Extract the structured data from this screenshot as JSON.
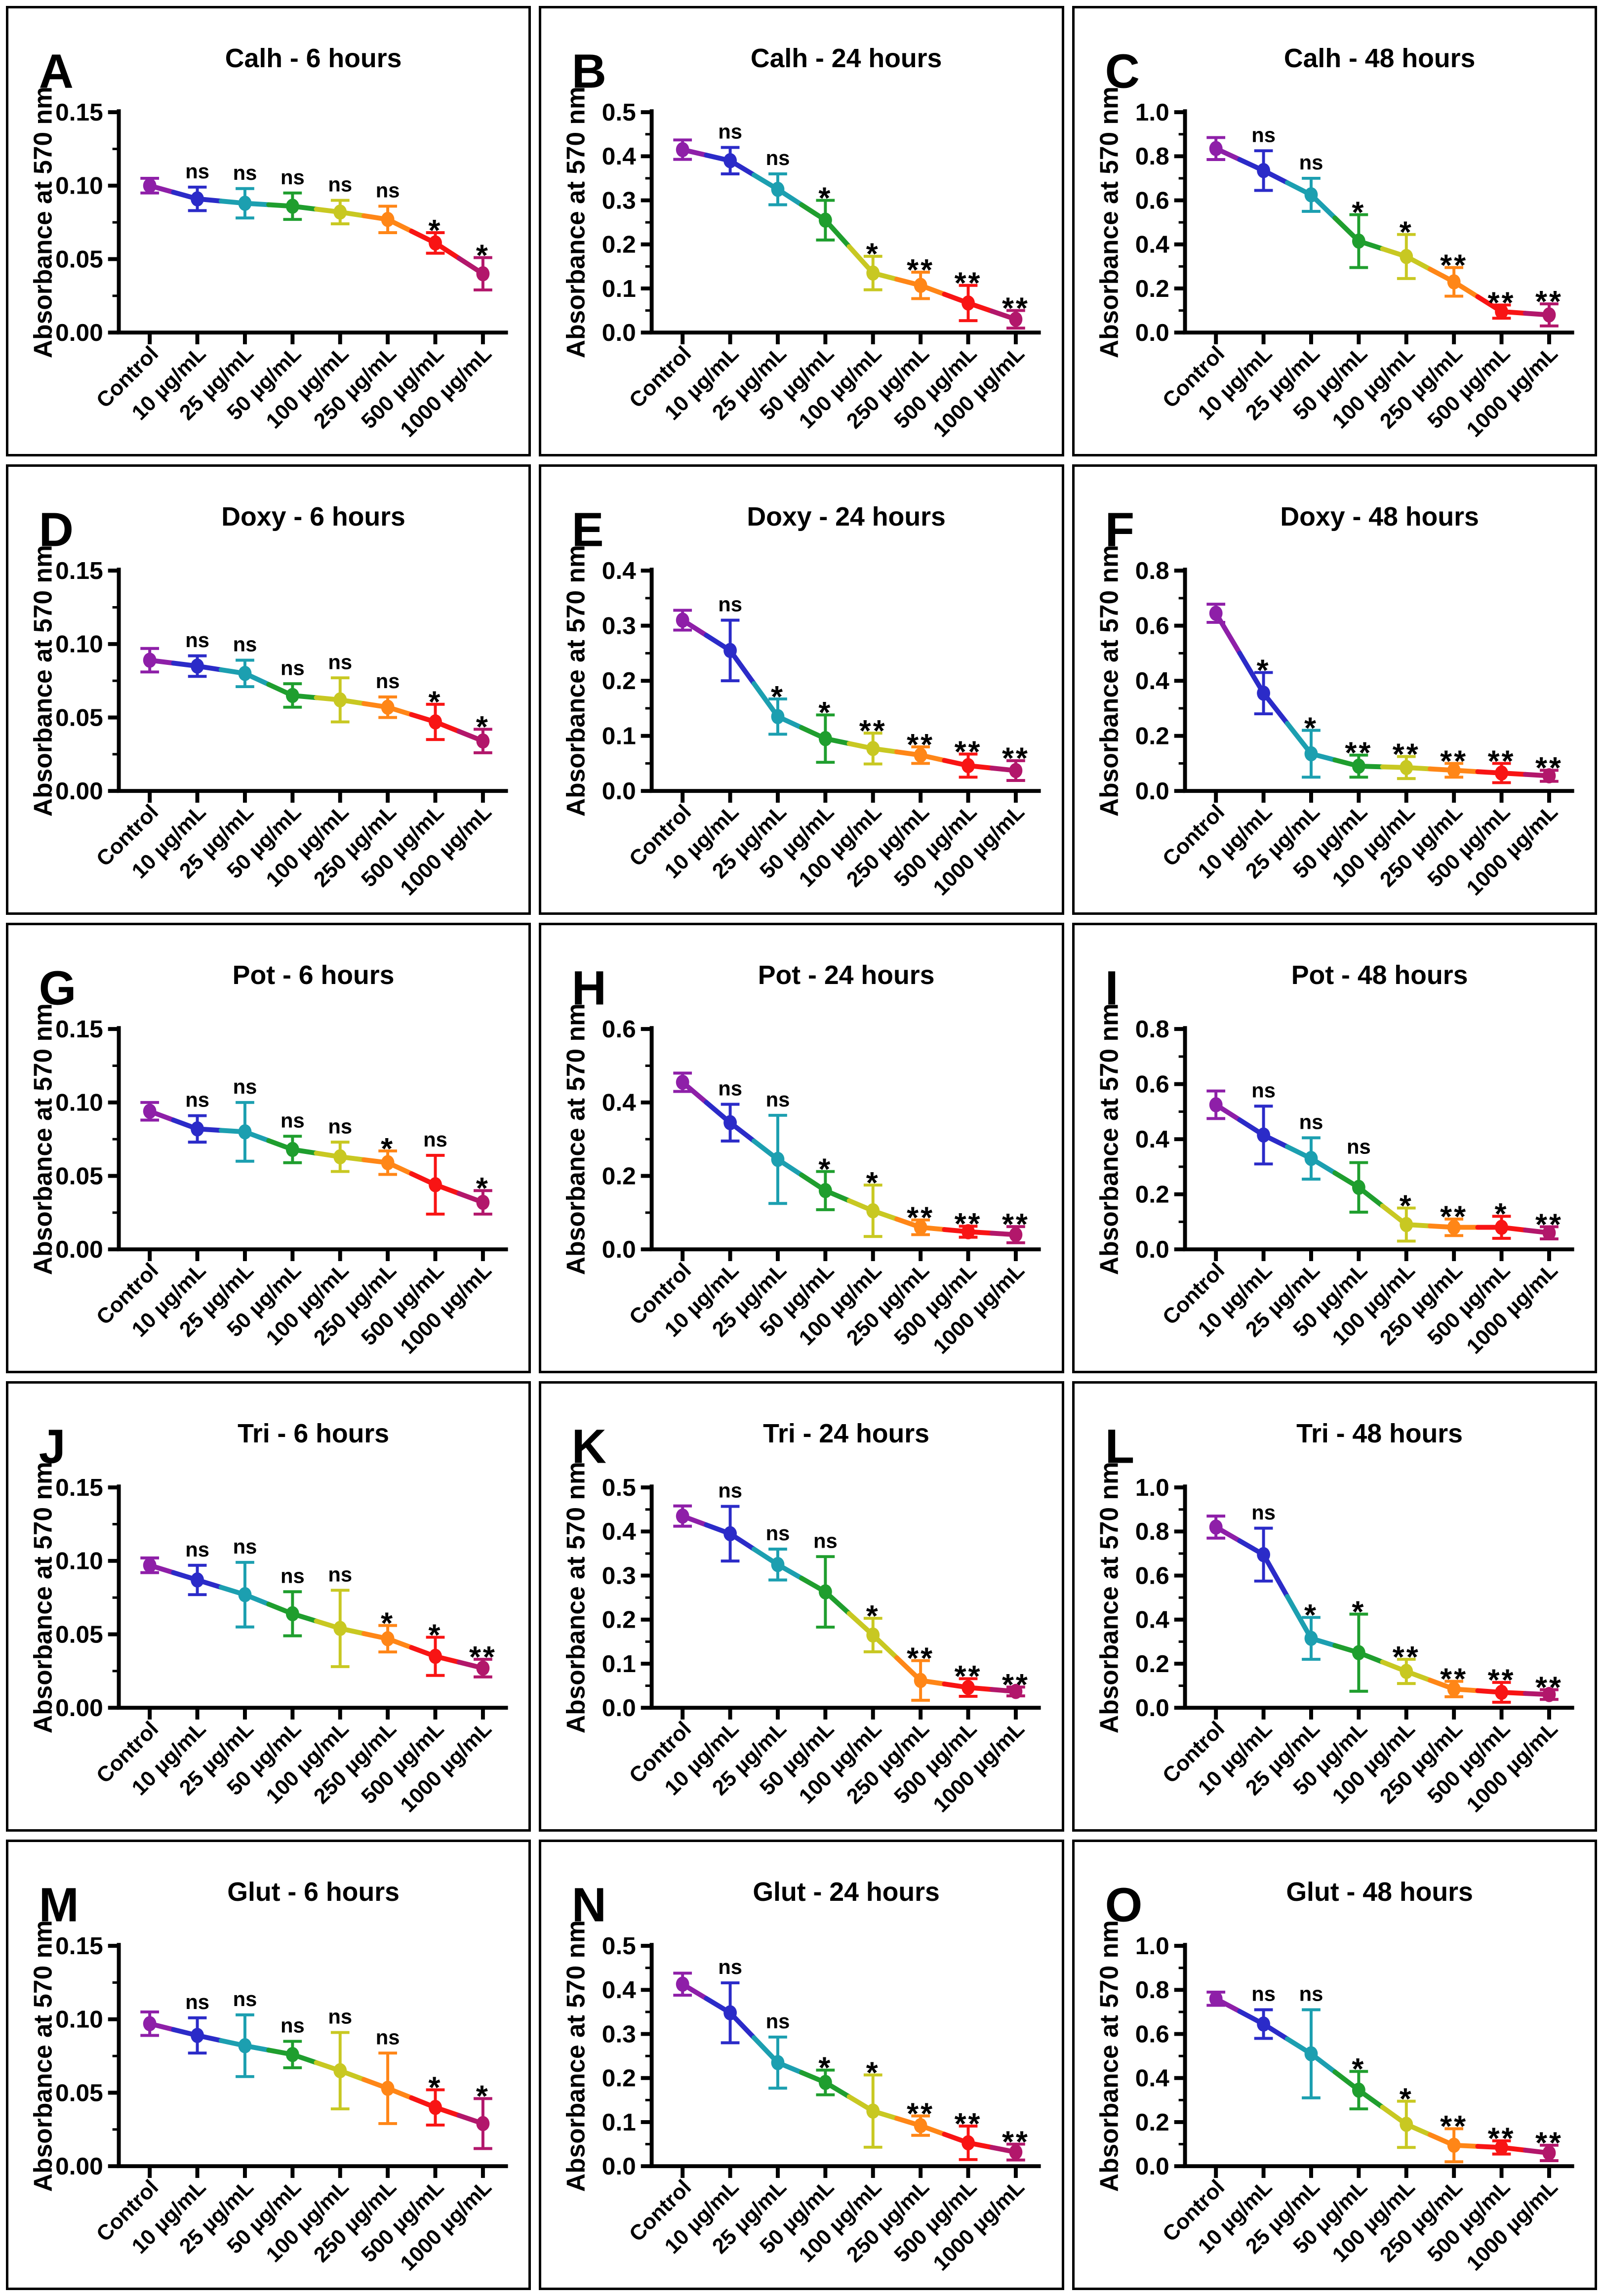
{
  "page": {
    "background": "#ffffff"
  },
  "shared": {
    "ylabel": "Absorbance at 570 nm",
    "categories": [
      "Control",
      "10 µg/mL",
      "25 µg/mL",
      "50 µg/mL",
      "100 µg/mL",
      "250 µg/mL",
      "500 µg/mL",
      "1000 µg/mL"
    ],
    "point_colors": [
      "#8E1FA8",
      "#2B2BC8",
      "#1C9FB0",
      "#1F9E2E",
      "#C8C822",
      "#FF8617",
      "#F81414",
      "#B2176B"
    ],
    "axis_color": "#000000",
    "significance_symbols": [
      "ns",
      "*",
      "**"
    ]
  },
  "chart_data": [
    {
      "letter": "A",
      "title": "Calh - 6 hours",
      "type": "line",
      "ylim": [
        0,
        0.15
      ],
      "yticks": [
        "0.00",
        "0.05",
        "0.10",
        "0.15"
      ],
      "values": [
        0.1,
        0.091,
        0.088,
        0.086,
        0.082,
        0.077,
        0.061,
        0.04
      ],
      "errors": [
        0.005,
        0.008,
        0.01,
        0.009,
        0.008,
        0.009,
        0.007,
        0.011
      ],
      "sig": [
        "",
        "ns",
        "ns",
        "ns",
        "ns",
        "ns",
        "*",
        "*"
      ]
    },
    {
      "letter": "B",
      "title": "Calh - 24 hours",
      "type": "line",
      "ylim": [
        0,
        0.5
      ],
      "yticks": [
        "0.0",
        "0.1",
        "0.2",
        "0.3",
        "0.4",
        "0.5"
      ],
      "values": [
        0.415,
        0.39,
        0.325,
        0.255,
        0.135,
        0.107,
        0.067,
        0.03
      ],
      "errors": [
        0.022,
        0.03,
        0.035,
        0.045,
        0.038,
        0.03,
        0.04,
        0.02
      ],
      "sig": [
        "",
        "ns",
        "ns",
        "*",
        "*",
        "**",
        "**",
        "**"
      ]
    },
    {
      "letter": "C",
      "title": "Calh - 48 hours",
      "type": "line",
      "ylim": [
        0,
        1.0
      ],
      "yticks": [
        "0.0",
        "0.2",
        "0.4",
        "0.6",
        "0.8",
        "1.0"
      ],
      "values": [
        0.835,
        0.735,
        0.625,
        0.415,
        0.345,
        0.23,
        0.095,
        0.08
      ],
      "errors": [
        0.05,
        0.09,
        0.075,
        0.12,
        0.1,
        0.065,
        0.03,
        0.05
      ],
      "sig": [
        "",
        "ns",
        "ns",
        "*",
        "*",
        "**",
        "**",
        "**"
      ]
    },
    {
      "letter": "D",
      "title": "Doxy - 6 hours",
      "type": "line",
      "ylim": [
        0,
        0.15
      ],
      "yticks": [
        "0.00",
        "0.05",
        "0.10",
        "0.15"
      ],
      "values": [
        0.089,
        0.085,
        0.08,
        0.065,
        0.062,
        0.057,
        0.047,
        0.034
      ],
      "errors": [
        0.008,
        0.007,
        0.009,
        0.008,
        0.015,
        0.007,
        0.012,
        0.008
      ],
      "sig": [
        "",
        "ns",
        "ns",
        "ns",
        "ns",
        "ns",
        "*",
        "*"
      ]
    },
    {
      "letter": "E",
      "title": "Doxy - 24 hours",
      "type": "line",
      "ylim": [
        0,
        0.4
      ],
      "yticks": [
        "0.0",
        "0.1",
        "0.2",
        "0.3",
        "0.4"
      ],
      "values": [
        0.31,
        0.255,
        0.135,
        0.095,
        0.077,
        0.065,
        0.046,
        0.037
      ],
      "errors": [
        0.018,
        0.055,
        0.032,
        0.043,
        0.028,
        0.015,
        0.021,
        0.018
      ],
      "sig": [
        "",
        "ns",
        "*",
        "*",
        "**",
        "**",
        "**",
        "**"
      ]
    },
    {
      "letter": "F",
      "title": "Doxy - 48 hours",
      "type": "line",
      "ylim": [
        0,
        0.8
      ],
      "yticks": [
        "0.0",
        "0.2",
        "0.4",
        "0.6",
        "0.8"
      ],
      "values": [
        0.645,
        0.355,
        0.135,
        0.09,
        0.085,
        0.075,
        0.065,
        0.055
      ],
      "errors": [
        0.033,
        0.075,
        0.085,
        0.04,
        0.04,
        0.025,
        0.035,
        0.02
      ],
      "sig": [
        "",
        "*",
        "*",
        "**",
        "**",
        "**",
        "**",
        "**"
      ]
    },
    {
      "letter": "G",
      "title": "Pot - 6 hours",
      "type": "line",
      "ylim": [
        0,
        0.15
      ],
      "yticks": [
        "0.00",
        "0.05",
        "0.10",
        "0.15"
      ],
      "values": [
        0.094,
        0.082,
        0.08,
        0.068,
        0.063,
        0.059,
        0.044,
        0.032
      ],
      "errors": [
        0.006,
        0.009,
        0.02,
        0.009,
        0.01,
        0.008,
        0.02,
        0.008
      ],
      "sig": [
        "",
        "ns",
        "ns",
        "ns",
        "ns",
        "*",
        "ns",
        "*"
      ]
    },
    {
      "letter": "H",
      "title": "Pot - 24 hours",
      "type": "line",
      "ylim": [
        0,
        0.6
      ],
      "yticks": [
        "0.0",
        "0.2",
        "0.4",
        "0.6"
      ],
      "values": [
        0.455,
        0.345,
        0.245,
        0.16,
        0.105,
        0.06,
        0.048,
        0.04
      ],
      "errors": [
        0.025,
        0.05,
        0.12,
        0.052,
        0.07,
        0.02,
        0.015,
        0.022
      ],
      "sig": [
        "",
        "ns",
        "ns",
        "*",
        "*",
        "**",
        "**",
        "**"
      ]
    },
    {
      "letter": "I",
      "title": "Pot - 48 hours",
      "type": "line",
      "ylim": [
        0,
        0.8
      ],
      "yticks": [
        "0.0",
        "0.2",
        "0.4",
        "0.6",
        "0.8"
      ],
      "values": [
        0.525,
        0.415,
        0.33,
        0.225,
        0.09,
        0.08,
        0.08,
        0.06
      ],
      "errors": [
        0.05,
        0.105,
        0.075,
        0.09,
        0.06,
        0.03,
        0.04,
        0.022
      ],
      "sig": [
        "",
        "ns",
        "ns",
        "ns",
        "*",
        "**",
        "*",
        "**"
      ]
    },
    {
      "letter": "J",
      "title": "Tri - 6 hours",
      "type": "line",
      "ylim": [
        0,
        0.15
      ],
      "yticks": [
        "0.00",
        "0.05",
        "0.10",
        "0.15"
      ],
      "values": [
        0.097,
        0.087,
        0.077,
        0.064,
        0.054,
        0.047,
        0.035,
        0.027
      ],
      "errors": [
        0.005,
        0.01,
        0.022,
        0.015,
        0.026,
        0.009,
        0.013,
        0.006
      ],
      "sig": [
        "",
        "ns",
        "ns",
        "ns",
        "ns",
        "*",
        "*",
        "**"
      ]
    },
    {
      "letter": "K",
      "title": "Tri - 24 hours",
      "type": "line",
      "ylim": [
        0,
        0.5
      ],
      "yticks": [
        "0.0",
        "0.1",
        "0.2",
        "0.3",
        "0.4",
        "0.5"
      ],
      "values": [
        0.435,
        0.395,
        0.325,
        0.263,
        0.165,
        0.062,
        0.046,
        0.037
      ],
      "errors": [
        0.023,
        0.062,
        0.035,
        0.08,
        0.038,
        0.045,
        0.02,
        0.01
      ],
      "sig": [
        "",
        "ns",
        "ns",
        "ns",
        "*",
        "**",
        "**",
        "**"
      ]
    },
    {
      "letter": "L",
      "title": "Tri - 48 hours",
      "type": "line",
      "ylim": [
        0,
        1.0
      ],
      "yticks": [
        "0.0",
        "0.2",
        "0.4",
        "0.6",
        "0.8",
        "1.0"
      ],
      "values": [
        0.82,
        0.695,
        0.315,
        0.25,
        0.165,
        0.085,
        0.07,
        0.06
      ],
      "errors": [
        0.05,
        0.12,
        0.095,
        0.175,
        0.055,
        0.035,
        0.045,
        0.022
      ],
      "sig": [
        "",
        "ns",
        "*",
        "*",
        "**",
        "**",
        "**",
        "**"
      ]
    },
    {
      "letter": "M",
      "title": "Glut - 6 hours",
      "type": "line",
      "ylim": [
        0,
        0.15
      ],
      "yticks": [
        "0.00",
        "0.05",
        "0.10",
        "0.15"
      ],
      "values": [
        0.097,
        0.089,
        0.082,
        0.076,
        0.065,
        0.053,
        0.04,
        0.029
      ],
      "errors": [
        0.008,
        0.012,
        0.021,
        0.009,
        0.026,
        0.024,
        0.012,
        0.017
      ],
      "sig": [
        "",
        "ns",
        "ns",
        "ns",
        "ns",
        "ns",
        "*",
        "*"
      ]
    },
    {
      "letter": "N",
      "title": "Glut - 24 hours",
      "type": "line",
      "ylim": [
        0,
        0.5
      ],
      "yticks": [
        "0.0",
        "0.1",
        "0.2",
        "0.3",
        "0.4",
        "0.5"
      ],
      "values": [
        0.413,
        0.348,
        0.235,
        0.19,
        0.125,
        0.092,
        0.053,
        0.032
      ],
      "errors": [
        0.025,
        0.068,
        0.058,
        0.028,
        0.082,
        0.022,
        0.038,
        0.018
      ],
      "sig": [
        "",
        "ns",
        "ns",
        "*",
        "*",
        "**",
        "**",
        "**"
      ]
    },
    {
      "letter": "O",
      "title": "Glut - 48 hours",
      "type": "line",
      "ylim": [
        0,
        1.0
      ],
      "yticks": [
        "0.0",
        "0.2",
        "0.4",
        "0.6",
        "0.8",
        "1.0"
      ],
      "values": [
        0.76,
        0.645,
        0.51,
        0.345,
        0.19,
        0.095,
        0.085,
        0.06
      ],
      "errors": [
        0.03,
        0.065,
        0.2,
        0.085,
        0.105,
        0.075,
        0.03,
        0.035
      ],
      "sig": [
        "",
        "ns",
        "ns",
        "*",
        "*",
        "**",
        "**",
        "**"
      ]
    }
  ]
}
